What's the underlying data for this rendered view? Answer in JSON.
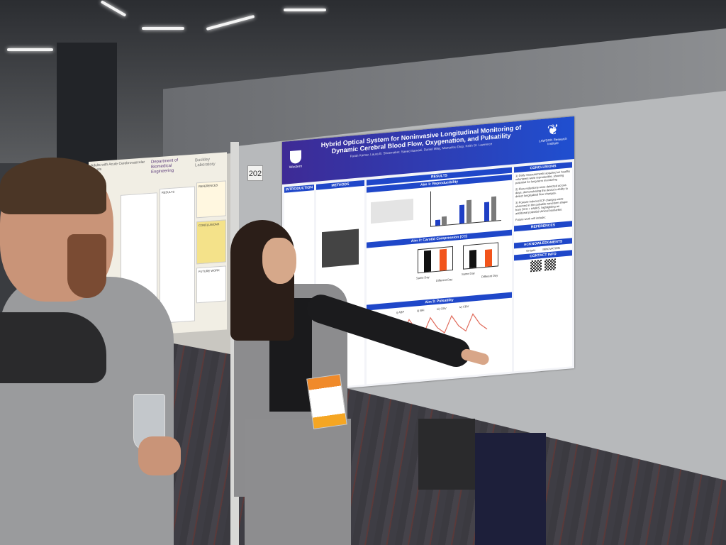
{
  "scene": {
    "booth_number": "202"
  },
  "left_poster": {
    "title_fragment": "Adults with Acute Cerebrovascular Events",
    "department": "Department of Biomedical Engineering",
    "lab": "Buckley Laboratory",
    "sections": [
      "RESULTS",
      "REFERENCES",
      "CONCLUSIONS",
      "FUTURE WORK"
    ]
  },
  "poster": {
    "title_line1": "Hybrid Optical System for Noninvasive Longitudinal Monitoring of",
    "title_line2": "Dynamic Cerebral Blood Flow, Oxygenation, and Pulsatility",
    "authors": "Farah Kamar, Laura B. Shoemaker, Saeed Samaei, Daniel Milej, Mamadou Diop, Keith St. Lawrence",
    "logo_left": "Western",
    "logo_right": "LAWSON Research Institute",
    "sections": {
      "introduction": "INTRODUCTION",
      "methods": "METHODS",
      "results": "RESULTS",
      "aim1": "Aim 1: Reproducibility",
      "aim2": "Aim 2: Carotid Compression (CC)",
      "aim3": "Aim 3: Pulsatility",
      "conclusions": "CONCLUSIONS",
      "references": "REFERENCES",
      "acknowledgments": "ACKNOWLEDGMENTS",
      "contact": "CONTACT INFO"
    },
    "aim2_labels": [
      "Same Day",
      "Different Day",
      "Same Day",
      "Different Day"
    ],
    "aim3_labels": [
      "i) ABP",
      "ii) BFi",
      "iii) CBV",
      "iv) CBV"
    ],
    "conclusions": [
      "1) Daily measurements acquired on healthy volunteers were reproducible, showing potential for long-term monitoring",
      "2) Flow reductions were detected across days, demonstrating the device's ability to detect longitudinal flow changes.",
      "3) Posture-induced ICP changes were observed in the pulsatile waveform shape from DCS + trNIRS, highlighting an additional potential clinical biomarker.",
      "Future work will include:"
    ],
    "ack_logos": [
      "Ontario",
      "INNOVATION"
    ]
  },
  "colors": {
    "poster_header": "#3e2a95",
    "poster_accent": "#1f47c9",
    "bar_blue": "#1f3fc4",
    "bar_gray": "#7a7a7a",
    "bar_orange": "#f2541b"
  }
}
